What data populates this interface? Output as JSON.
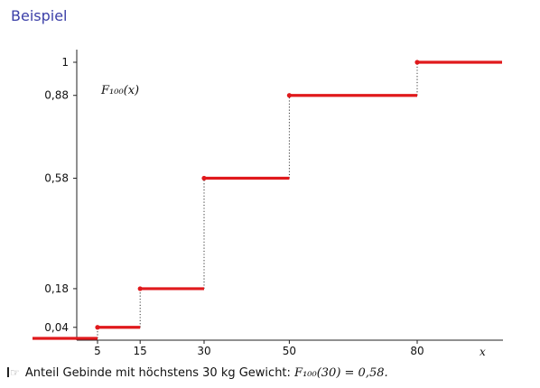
{
  "slide": {
    "title": "Beispiel"
  },
  "caption": {
    "text": "Anteil Gebinde mit höchstens 30 kg Gewicht: ",
    "formula": "F₁₀₀(30) = 0,58."
  },
  "chart_data": {
    "type": "step",
    "function_label": "F₁₀₀(x)",
    "xlabel": "x",
    "ylabel": "",
    "x_ticks": [
      5,
      15,
      30,
      50,
      80
    ],
    "y_ticks": [
      {
        "value": 0.04,
        "label": "0,04"
      },
      {
        "value": 0.18,
        "label": "0,18"
      },
      {
        "value": 0.58,
        "label": "0,58"
      },
      {
        "value": 0.88,
        "label": "0,88"
      },
      {
        "value": 1.0,
        "label": "1"
      }
    ],
    "steps": [
      {
        "x_start": null,
        "x_end": 5,
        "y": 0
      },
      {
        "x_start": 5,
        "x_end": 15,
        "y": 0.04
      },
      {
        "x_start": 15,
        "x_end": 30,
        "y": 0.18
      },
      {
        "x_start": 30,
        "x_end": 50,
        "y": 0.58
      },
      {
        "x_start": 50,
        "x_end": 80,
        "y": 0.88
      },
      {
        "x_start": 80,
        "x_end": null,
        "y": 1.0
      }
    ],
    "xlim": [
      -5,
      100
    ],
    "ylim": [
      0,
      1.05
    ],
    "colors": {
      "step": "#e0191c",
      "axis": "#222222",
      "jump": "#333333"
    }
  }
}
